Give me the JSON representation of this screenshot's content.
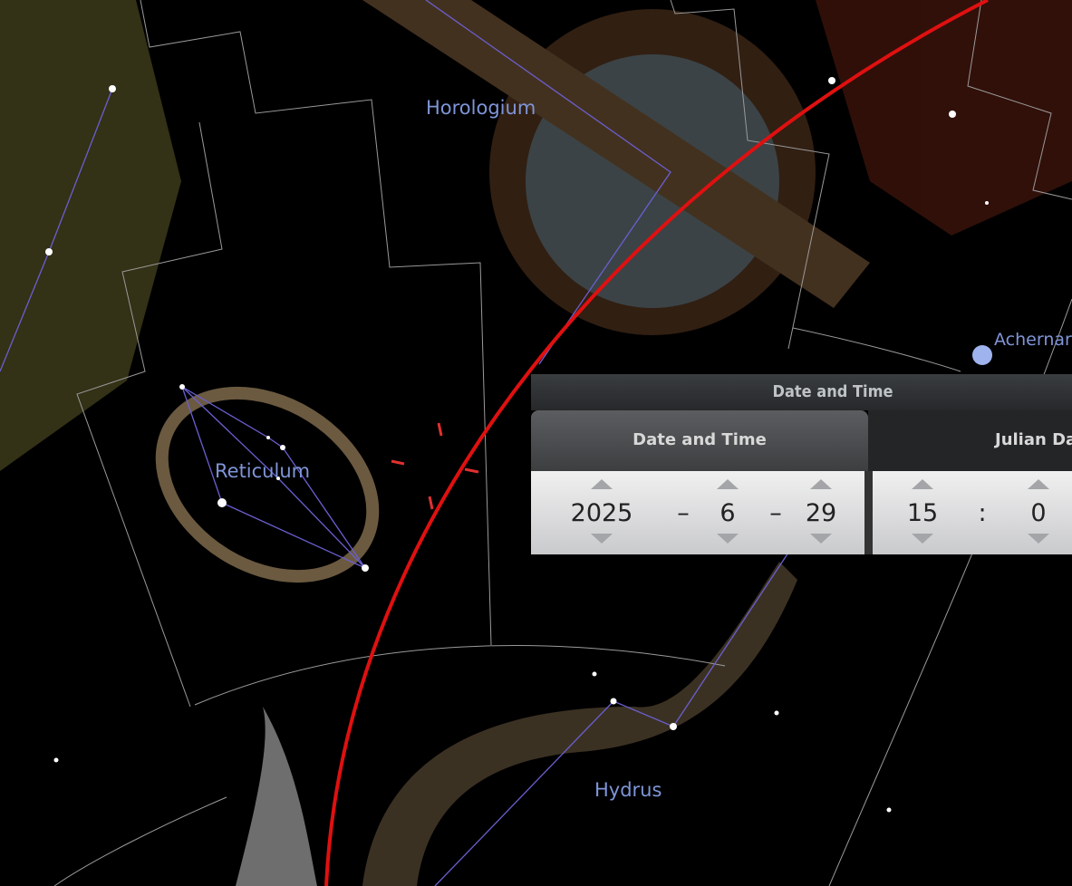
{
  "sky_labels": {
    "constellations": [
      "Horologium",
      "Reticulum",
      "Hydrus"
    ],
    "stars": [
      "Achernar"
    ]
  },
  "dialog": {
    "title": "Date and Time",
    "tabs": [
      "Date and Time",
      "Julian Day"
    ],
    "date": {
      "year": 2025,
      "month": 6,
      "day": 29
    },
    "time": {
      "hour": 15,
      "minute": 0
    },
    "separators": [
      "–",
      "–",
      ":"
    ]
  }
}
